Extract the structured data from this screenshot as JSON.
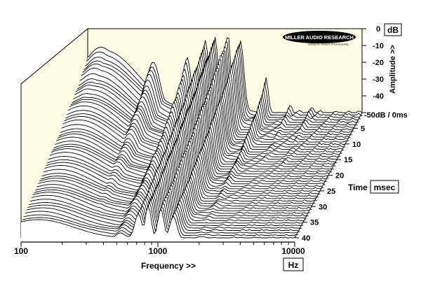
{
  "colors": {
    "panel_fill": "#fffbe4",
    "floor_fill": "#ffffff",
    "trace_stroke": "#000000",
    "background": "#ffffff"
  },
  "brand": {
    "logo_text": "MILLER AUDIO RESEARCH",
    "tagline": "setting the measure of sound quality",
    "logo_icon": "miller-audio-research-logo"
  },
  "chart_data": {
    "type": "waterfall",
    "title": "",
    "xlabel": "Frequency >>",
    "x_unit": "Hz",
    "x_scale": "log",
    "xlim": [
      100,
      10000
    ],
    "x_ticks": [
      100,
      1000,
      10000
    ],
    "x_tick_labels": [
      "100",
      "1000",
      "10000"
    ],
    "zlabel": "Amplitude >>",
    "z_unit": "dB",
    "zlim": [
      -50,
      0
    ],
    "z_ticks": [
      0,
      -10,
      -20,
      -30,
      -40,
      -50
    ],
    "z_tick_labels": [
      "0",
      "-10",
      "-20",
      "-30",
      "-40"
    ],
    "z_floor_label": "-50dB / 0ms",
    "ylabel": "Time",
    "y_unit": "msec",
    "ylim": [
      0,
      40
    ],
    "y_ticks": [
      5,
      10,
      15,
      20,
      25,
      30,
      35,
      40
    ],
    "y_tick_labels": [
      "5",
      "10",
      "15",
      "20",
      "25",
      "30",
      "35",
      "40"
    ],
    "grid": false,
    "slice_count": 52,
    "ridges": [
      {
        "freq_hz": 125,
        "peak_db": -12
      },
      {
        "freq_hz": 300,
        "peak_db": -20
      },
      {
        "freq_hz": 530,
        "peak_db": -18
      },
      {
        "freq_hz": 720,
        "peak_db": -7
      },
      {
        "freq_hz": 850,
        "peak_db": -4
      },
      {
        "freq_hz": 1050,
        "peak_db": -3
      },
      {
        "freq_hz": 1300,
        "peak_db": -6
      },
      {
        "freq_hz": 2000,
        "peak_db": -30
      },
      {
        "freq_hz": 3000,
        "peak_db": -45
      },
      {
        "freq_hz": 4300,
        "peak_db": -45
      }
    ]
  }
}
